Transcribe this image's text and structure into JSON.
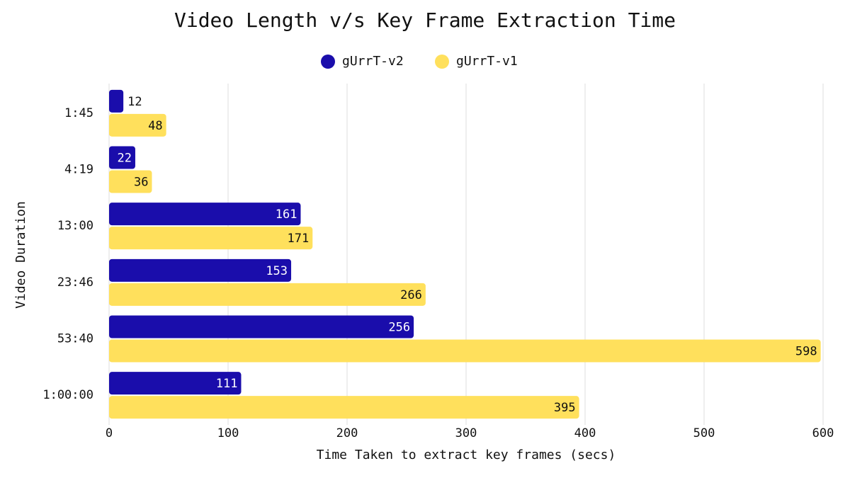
{
  "chart_data": {
    "type": "bar",
    "orientation": "horizontal",
    "title": "Video Length v/s Key Frame Extraction Time",
    "x_label": "Time Taken to extract key frames (secs)",
    "y_label": "Video Duration",
    "categories": [
      "1:45",
      "4:19",
      "13:00",
      "23:46",
      "53:40",
      "1:00:00"
    ],
    "series": [
      {
        "name": "gUrrT-v2",
        "color": "#1a0dab",
        "values": [
          12,
          22,
          161,
          153,
          256,
          111
        ]
      },
      {
        "name": "gUrrT-v1",
        "color": "#ffe05c",
        "values": [
          48,
          36,
          171,
          266,
          598,
          395
        ]
      }
    ],
    "xlim": [
      0,
      600
    ],
    "xticks": [
      0,
      100,
      200,
      300,
      400,
      500,
      600
    ],
    "grid": true,
    "legend": "top"
  }
}
